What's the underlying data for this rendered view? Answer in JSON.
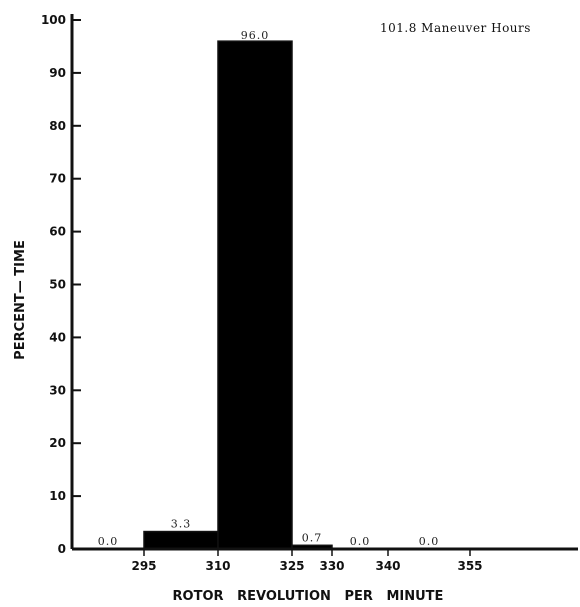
{
  "chart_data": {
    "type": "bar",
    "xlabel": "ROTOR   REVOLUTION   PER   MINUTE",
    "ylabel": "PERCENT— TIME",
    "annotation": "101.8 Maneuver Hours",
    "ylim": [
      0,
      100
    ],
    "yticks": [
      "0",
      "10",
      "20",
      "30",
      "40",
      "50",
      "60",
      "70",
      "80",
      "90",
      "100"
    ],
    "x_tick_labels": [
      "295",
      "310",
      "325",
      "330",
      "340",
      "355"
    ],
    "bins": [
      {
        "from": 280,
        "to": 295,
        "value": 0.0,
        "label": "0.0"
      },
      {
        "from": 295,
        "to": 310,
        "value": 3.3,
        "label": "3.3"
      },
      {
        "from": 310,
        "to": 325,
        "value": 96.0,
        "label": "96.0"
      },
      {
        "from": 325,
        "to": 330,
        "value": 0.7,
        "label": "0.7"
      },
      {
        "from": 330,
        "to": 340,
        "value": 0.0,
        "label": "0.0"
      },
      {
        "from": 340,
        "to": 355,
        "value": 0.0,
        "label": "0.0"
      }
    ],
    "bar_color": "#000000",
    "grid": false
  }
}
